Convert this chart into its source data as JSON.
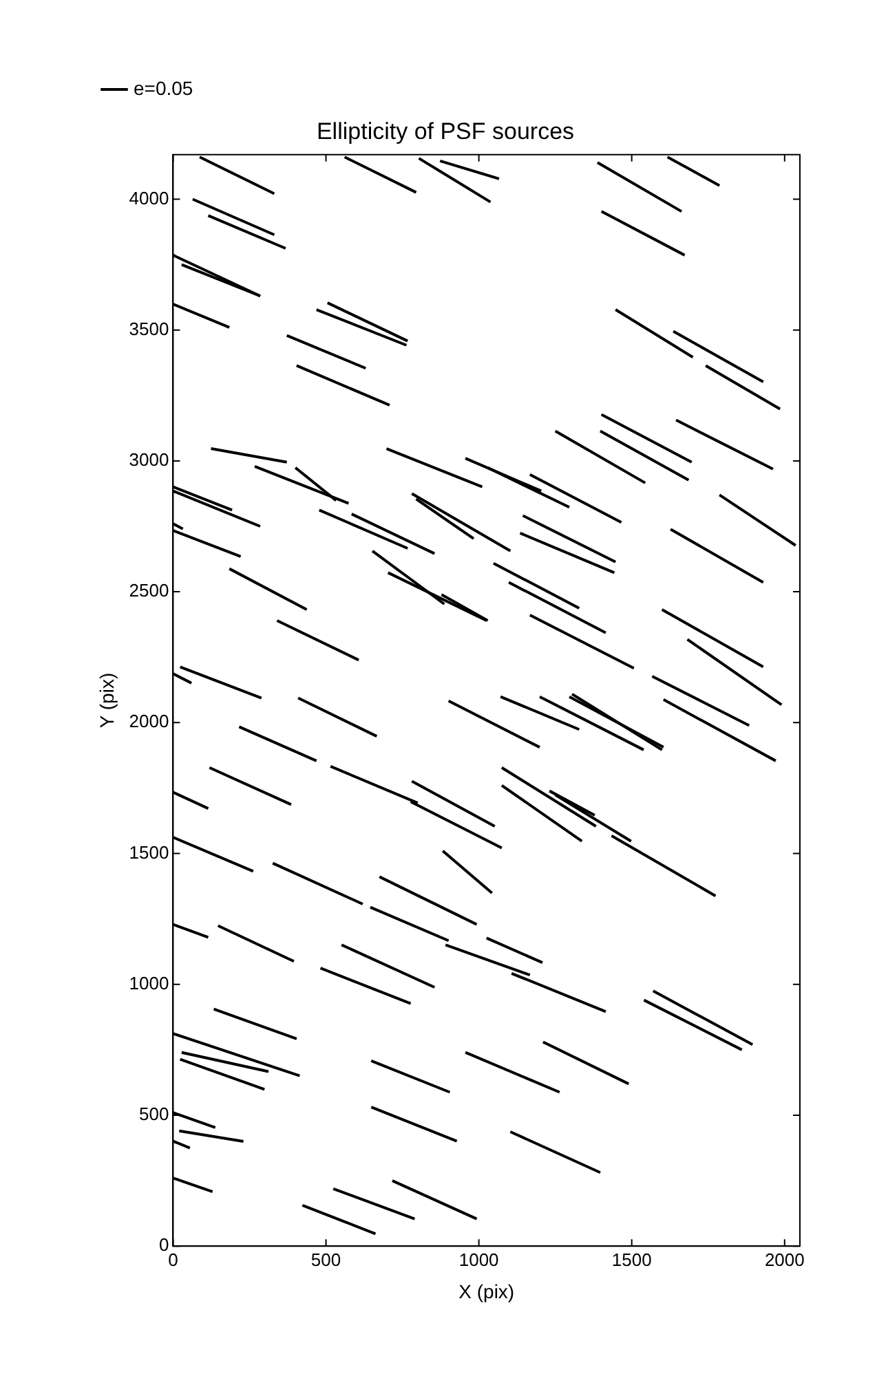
{
  "chart_data": {
    "type": "line",
    "title": "Ellipticity of PSF sources",
    "xlabel": "X (pix)",
    "ylabel": "Y (pix)",
    "xlim": [
      0,
      2050
    ],
    "ylim": [
      0,
      4170
    ],
    "xticks": [
      0,
      500,
      1000,
      1500,
      2000
    ],
    "yticks": [
      0,
      500,
      1000,
      1500,
      2000,
      2500,
      3000,
      3500,
      4000
    ],
    "legend": "top left",
    "series": [
      {
        "name": "e=0.05",
        "color": "#000000",
        "x": [
          87,
          331
        ],
        "values": [
          4161,
          4021
        ]
      },
      {
        "color": "#000000",
        "x": [
          561,
          795
        ],
        "values": [
          4161,
          4026
        ]
      },
      {
        "color": "#000000",
        "x": [
          804,
          1038
        ],
        "values": [
          4156,
          3989
        ]
      },
      {
        "color": "#000000",
        "x": [
          873,
          1066
        ],
        "values": [
          4146,
          4078
        ]
      },
      {
        "color": "#000000",
        "x": [
          1388,
          1663
        ],
        "values": [
          4140,
          3953
        ]
      },
      {
        "color": "#000000",
        "x": [
          1617,
          1787
        ],
        "values": [
          4161,
          4052
        ]
      },
      {
        "color": "#000000",
        "x": [
          64,
          331
        ],
        "values": [
          4000,
          3864
        ]
      },
      {
        "color": "#000000",
        "x": [
          115,
          368
        ],
        "values": [
          3937,
          3812
        ]
      },
      {
        "color": "#000000",
        "x": [
          0,
          285
        ],
        "values": [
          3786,
          3630
        ]
      },
      {
        "color": "#000000",
        "x": [
          28,
          285
        ],
        "values": [
          3750,
          3630
        ]
      },
      {
        "color": "#000000",
        "x": [
          1401,
          1673
        ],
        "values": [
          3953,
          3786
        ]
      },
      {
        "color": "#000000",
        "x": [
          0,
          184
        ],
        "values": [
          3599,
          3510
        ]
      },
      {
        "color": "#000000",
        "x": [
          469,
          763
        ],
        "values": [
          3578,
          3442
        ]
      },
      {
        "color": "#000000",
        "x": [
          505,
          767
        ],
        "values": [
          3604,
          3458
        ]
      },
      {
        "color": "#000000",
        "x": [
          372,
          630
        ],
        "values": [
          3479,
          3354
        ]
      },
      {
        "color": "#000000",
        "x": [
          404,
          708
        ],
        "values": [
          3364,
          3213
        ]
      },
      {
        "color": "#000000",
        "x": [
          1447,
          1700
        ],
        "values": [
          3578,
          3396
        ]
      },
      {
        "color": "#000000",
        "x": [
          1636,
          1930
        ],
        "values": [
          3495,
          3302
        ]
      },
      {
        "color": "#000000",
        "x": [
          1742,
          1985
        ],
        "values": [
          3364,
          3198
        ]
      },
      {
        "color": "#000000",
        "x": [
          124,
          372
        ],
        "values": [
          3047,
          2995
        ]
      },
      {
        "color": "#000000",
        "x": [
          267,
          574
        ],
        "values": [
          2979,
          2838
        ]
      },
      {
        "color": "#000000",
        "x": [
          400,
          533
        ],
        "values": [
          2974,
          2849
        ]
      },
      {
        "color": "#000000",
        "x": [
          0,
          193
        ],
        "values": [
          2901,
          2812
        ]
      },
      {
        "color": "#000000",
        "x": [
          0,
          285
        ],
        "values": [
          2885,
          2750
        ]
      },
      {
        "color": "#000000",
        "x": [
          698,
          1011
        ],
        "values": [
          3047,
          2901
        ]
      },
      {
        "color": "#000000",
        "x": [
          956,
          1204
        ],
        "values": [
          3010,
          2885
        ]
      },
      {
        "color": "#000000",
        "x": [
          1029,
          1296
        ],
        "values": [
          2974,
          2823
        ]
      },
      {
        "color": "#000000",
        "x": [
          1167,
          1466
        ],
        "values": [
          2948,
          2765
        ]
      },
      {
        "color": "#000000",
        "x": [
          1250,
          1544
        ],
        "values": [
          3114,
          2916
        ]
      },
      {
        "color": "#000000",
        "x": [
          1401,
          1696
        ],
        "values": [
          3177,
          2995
        ]
      },
      {
        "color": "#000000",
        "x": [
          1397,
          1686
        ],
        "values": [
          3114,
          2927
        ]
      },
      {
        "color": "#000000",
        "x": [
          1645,
          1962
        ],
        "values": [
          3156,
          2969
        ]
      },
      {
        "color": "#000000",
        "x": [
          0,
          32
        ],
        "values": [
          2760,
          2740
        ]
      },
      {
        "color": "#000000",
        "x": [
          0,
          221
        ],
        "values": [
          2734,
          2635
        ]
      },
      {
        "color": "#000000",
        "x": [
          478,
          767
        ],
        "values": [
          2812,
          2666
        ]
      },
      {
        "color": "#000000",
        "x": [
          781,
          1103
        ],
        "values": [
          2875,
          2656
        ]
      },
      {
        "color": "#000000",
        "x": [
          795,
          983
        ],
        "values": [
          2854,
          2703
        ]
      },
      {
        "color": "#000000",
        "x": [
          584,
          855
        ],
        "values": [
          2797,
          2646
        ]
      },
      {
        "color": "#000000",
        "x": [
          1144,
          1447
        ],
        "values": [
          2791,
          2614
        ]
      },
      {
        "color": "#000000",
        "x": [
          1135,
          1443
        ],
        "values": [
          2724,
          2573
        ]
      },
      {
        "color": "#000000",
        "x": [
          1787,
          2036
        ],
        "values": [
          2870,
          2677
        ]
      },
      {
        "color": "#000000",
        "x": [
          1627,
          1930
        ],
        "values": [
          2739,
          2536
        ]
      },
      {
        "color": "#000000",
        "x": [
          652,
          887
        ],
        "values": [
          2656,
          2453
        ]
      },
      {
        "color": "#000000",
        "x": [
          703,
          1025
        ],
        "values": [
          2573,
          2390
        ]
      },
      {
        "color": "#000000",
        "x": [
          184,
          437
        ],
        "values": [
          2588,
          2432
        ]
      },
      {
        "color": "#000000",
        "x": [
          878,
          1029
        ],
        "values": [
          2489,
          2390
        ]
      },
      {
        "color": "#000000",
        "x": [
          1048,
          1328
        ],
        "values": [
          2609,
          2437
        ]
      },
      {
        "color": "#000000",
        "x": [
          1098,
          1415
        ],
        "values": [
          2536,
          2343
        ]
      },
      {
        "color": "#000000",
        "x": [
          1167,
          1507
        ],
        "values": [
          2411,
          2208
        ]
      },
      {
        "color": "#000000",
        "x": [
          340,
          607
        ],
        "values": [
          2390,
          2239
        ]
      },
      {
        "color": "#000000",
        "x": [
          23,
          289
        ],
        "values": [
          2213,
          2094
        ]
      },
      {
        "color": "#000000",
        "x": [
          0,
          60
        ],
        "values": [
          2187,
          2151
        ]
      },
      {
        "color": "#000000",
        "x": [
          216,
          469
        ],
        "values": [
          1984,
          1854
        ]
      },
      {
        "color": "#000000",
        "x": [
          409,
          666
        ],
        "values": [
          2094,
          1948
        ]
      },
      {
        "color": "#000000",
        "x": [
          901,
          1199
        ],
        "values": [
          2083,
          1906
        ]
      },
      {
        "color": "#000000",
        "x": [
          1071,
          1328
        ],
        "values": [
          2099,
          1974
        ]
      },
      {
        "color": "#000000",
        "x": [
          1599,
          1930
        ],
        "values": [
          2432,
          2213
        ]
      },
      {
        "color": "#000000",
        "x": [
          1682,
          1990
        ],
        "values": [
          2318,
          2068
        ]
      },
      {
        "color": "#000000",
        "x": [
          1199,
          1539
        ],
        "values": [
          2099,
          1896
        ]
      },
      {
        "color": "#000000",
        "x": [
          1305,
          1599
        ],
        "values": [
          2109,
          1896
        ]
      },
      {
        "color": "#000000",
        "x": [
          1296,
          1604
        ],
        "values": [
          2099,
          1906
        ]
      },
      {
        "color": "#000000",
        "x": [
          1567,
          1884
        ],
        "values": [
          2177,
          1989
        ]
      },
      {
        "color": "#000000",
        "x": [
          1604,
          1971
        ],
        "values": [
          2088,
          1854
        ]
      },
      {
        "color": "#000000",
        "x": [
          119,
          386
        ],
        "values": [
          1828,
          1687
        ]
      },
      {
        "color": "#000000",
        "x": [
          515,
          800
        ],
        "values": [
          1833,
          1693
        ]
      },
      {
        "color": "#000000",
        "x": [
          0,
          115
        ],
        "values": [
          1734,
          1672
        ]
      },
      {
        "color": "#000000",
        "x": [
          781,
          1052
        ],
        "values": [
          1776,
          1604
        ]
      },
      {
        "color": "#000000",
        "x": [
          777,
          1075
        ],
        "values": [
          1698,
          1521
        ]
      },
      {
        "color": "#000000",
        "x": [
          882,
          1043
        ],
        "values": [
          1510,
          1349
        ]
      },
      {
        "color": "#000000",
        "x": [
          1075,
          1383
        ],
        "values": [
          1828,
          1604
        ]
      },
      {
        "color": "#000000",
        "x": [
          1075,
          1337
        ],
        "values": [
          1760,
          1547
        ]
      },
      {
        "color": "#000000",
        "x": [
          1231,
          1379
        ],
        "values": [
          1739,
          1646
        ]
      },
      {
        "color": "#000000",
        "x": [
          1250,
          1498
        ],
        "values": [
          1724,
          1547
        ]
      },
      {
        "color": "#000000",
        "x": [
          1434,
          1774
        ],
        "values": [
          1568,
          1338
        ]
      },
      {
        "color": "#000000",
        "x": [
          0,
          262
        ],
        "values": [
          1562,
          1432
        ]
      },
      {
        "color": "#000000",
        "x": [
          326,
          620
        ],
        "values": [
          1463,
          1307
        ]
      },
      {
        "color": "#000000",
        "x": [
          675,
          993
        ],
        "values": [
          1411,
          1229
        ]
      },
      {
        "color": "#000000",
        "x": [
          645,
          901
        ],
        "values": [
          1295,
          1167
        ]
      },
      {
        "color": "#000000",
        "x": [
          0,
          115
        ],
        "values": [
          1229,
          1180
        ]
      },
      {
        "color": "#000000",
        "x": [
          147,
          395
        ],
        "values": [
          1224,
          1088
        ]
      },
      {
        "color": "#000000",
        "x": [
          1025,
          1208
        ],
        "values": [
          1177,
          1083
        ]
      },
      {
        "color": "#000000",
        "x": [
          891,
          1167
        ],
        "values": [
          1151,
          1036
        ]
      },
      {
        "color": "#000000",
        "x": [
          482,
          777
        ],
        "values": [
          1062,
          927
        ]
      },
      {
        "color": "#000000",
        "x": [
          551,
          855
        ],
        "values": [
          1151,
          989
        ]
      },
      {
        "color": "#000000",
        "x": [
          1107,
          1415
        ],
        "values": [
          1042,
          896
        ]
      },
      {
        "color": "#000000",
        "x": [
          1570,
          1895
        ],
        "values": [
          975,
          770
        ]
      },
      {
        "color": "#000000",
        "x": [
          1540,
          1860
        ],
        "values": [
          940,
          750
        ]
      },
      {
        "color": "#000000",
        "x": [
          0,
          414
        ],
        "values": [
          812,
          651
        ]
      },
      {
        "color": "#000000",
        "x": [
          133,
          404
        ],
        "values": [
          906,
          792
        ]
      },
      {
        "color": "#000000",
        "x": [
          23,
          299
        ],
        "values": [
          714,
          599
        ]
      },
      {
        "color": "#000000",
        "x": [
          28,
          312
        ],
        "values": [
          740,
          667
        ]
      },
      {
        "color": "#000000",
        "x": [
          648,
          905
        ],
        "values": [
          708,
          588
        ]
      },
      {
        "color": "#000000",
        "x": [
          956,
          1264
        ],
        "values": [
          740,
          588
        ]
      },
      {
        "color": "#000000",
        "x": [
          1210,
          1490
        ],
        "values": [
          780,
          620
        ]
      },
      {
        "color": "#000000",
        "x": [
          0,
          138
        ],
        "values": [
          510,
          453
        ]
      },
      {
        "color": "#000000",
        "x": [
          0,
          55
        ],
        "values": [
          401,
          375
        ]
      },
      {
        "color": "#000000",
        "x": [
          20,
          230
        ],
        "values": [
          440,
          400
        ]
      },
      {
        "color": "#000000",
        "x": [
          0,
          129
        ],
        "values": [
          260,
          208
        ]
      },
      {
        "color": "#000000",
        "x": [
          648,
          928
        ],
        "values": [
          531,
          401
        ]
      },
      {
        "color": "#000000",
        "x": [
          524,
          790
        ],
        "values": [
          219,
          104
        ]
      },
      {
        "color": "#000000",
        "x": [
          423,
          662
        ],
        "values": [
          156,
          47
        ]
      },
      {
        "color": "#000000",
        "x": [
          717,
          993
        ],
        "values": [
          250,
          104
        ]
      },
      {
        "color": "#000000",
        "x": [
          1103,
          1397
        ],
        "values": [
          437,
          281
        ]
      }
    ]
  }
}
